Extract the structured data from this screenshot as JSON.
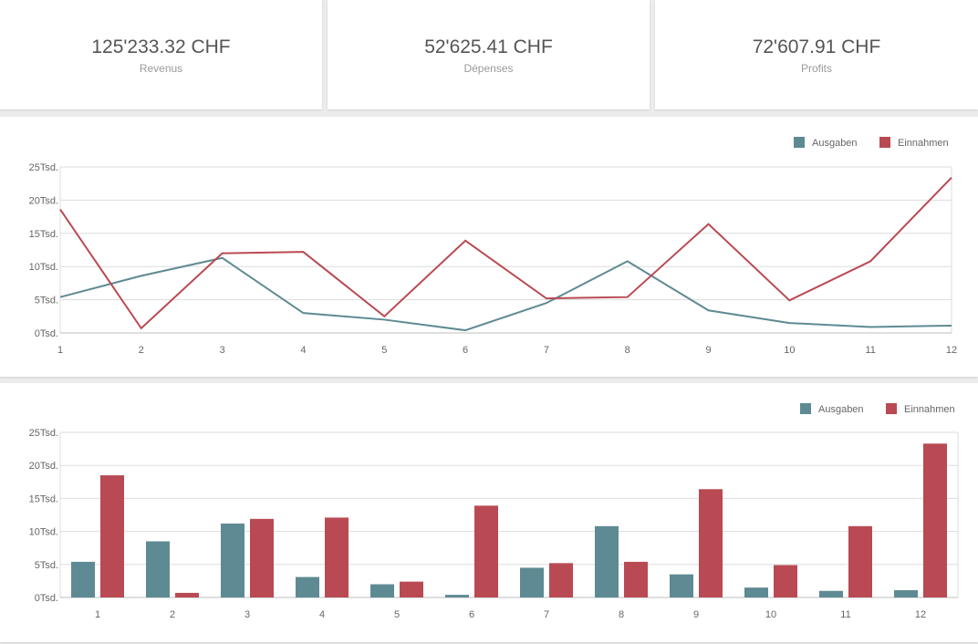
{
  "kpis": [
    {
      "value": "125'233.32 CHF",
      "label": "Revenus"
    },
    {
      "value": "52'625.41 CHF",
      "label": "Dépenses"
    },
    {
      "value": "72'607.91 CHF",
      "label": "Profits"
    }
  ],
  "colors": {
    "ausgaben": "#5e8a93",
    "einnahmen": "#b94a53",
    "grid": "#dddddd",
    "axis": "#bdbdbd"
  },
  "chart_data": [
    {
      "type": "line",
      "categories": [
        "1",
        "2",
        "3",
        "4",
        "5",
        "6",
        "7",
        "8",
        "9",
        "10",
        "11",
        "12"
      ],
      "ylim": [
        0,
        25000
      ],
      "yticks": [
        "0Tsd.",
        "5Tsd.",
        "10Tsd.",
        "15Tsd.",
        "20Tsd.",
        "25Tsd."
      ],
      "legend_position": "top-right",
      "grid": true,
      "series": [
        {
          "name": "Ausgaben",
          "values": [
            5400,
            8600,
            11300,
            3000,
            2000,
            400,
            4500,
            10800,
            3400,
            1500,
            900,
            1100
          ]
        },
        {
          "name": "Einnahmen",
          "values": [
            18600,
            700,
            12000,
            12200,
            2500,
            13900,
            5200,
            5400,
            16400,
            4900,
            10800,
            23400
          ]
        }
      ]
    },
    {
      "type": "bar",
      "categories": [
        "1",
        "2",
        "3",
        "4",
        "5",
        "6",
        "7",
        "8",
        "9",
        "10",
        "11",
        "12"
      ],
      "ylim": [
        0,
        25000
      ],
      "yticks": [
        "0Tsd.",
        "5Tsd.",
        "10Tsd.",
        "15Tsd.",
        "20Tsd.",
        "25Tsd."
      ],
      "legend_position": "top-right",
      "grid": true,
      "series": [
        {
          "name": "Ausgaben",
          "values": [
            5400,
            8500,
            11200,
            3100,
            2000,
            400,
            4500,
            10800,
            3500,
            1500,
            1000,
            1100
          ]
        },
        {
          "name": "Einnahmen",
          "values": [
            18500,
            700,
            11900,
            12100,
            2400,
            13900,
            5200,
            5400,
            16400,
            4900,
            10800,
            23300
          ]
        }
      ]
    }
  ]
}
